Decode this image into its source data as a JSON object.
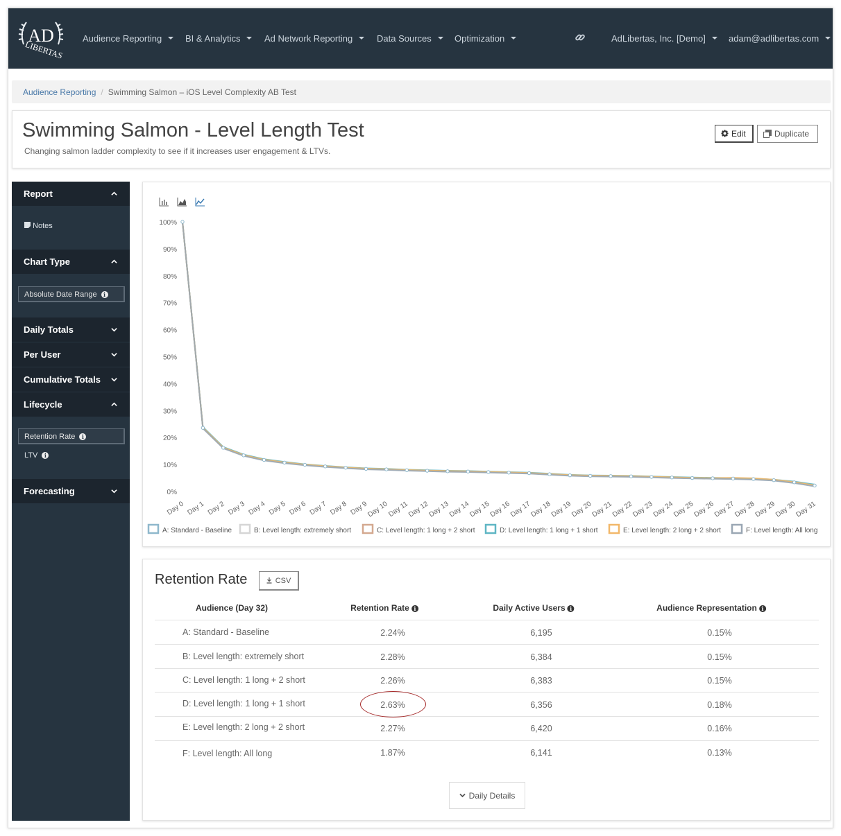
{
  "nav": {
    "logo_top": "AD",
    "logo_bottom": "LIBERTAS",
    "items": [
      {
        "label": "Audience Reporting"
      },
      {
        "label": "BI & Analytics"
      },
      {
        "label": "Ad Network Reporting"
      },
      {
        "label": "Data Sources"
      },
      {
        "label": "Optimization"
      }
    ],
    "org": "AdLibertas, Inc. [Demo]",
    "user": "adam@adlibertas.com"
  },
  "breadcrumb": {
    "root": "Audience Reporting",
    "separator": "/",
    "current": "Swimming Salmon – iOS Level Complexity AB Test"
  },
  "header": {
    "title": "Swimming Salmon - Level Length Test",
    "subtitle": "Changing salmon ladder complexity to see if it increases user engagement & LTVs.",
    "edit_label": "Edit",
    "duplicate_label": "Duplicate"
  },
  "sidebar": {
    "report_label": "Report",
    "notes_label": "Notes",
    "chart_type_label": "Chart Type",
    "absolute_date_range_label": "Absolute Date Range",
    "daily_totals_label": "Daily Totals",
    "per_user_label": "Per User",
    "cumulative_totals_label": "Cumulative Totals",
    "lifecycle_label": "Lifecycle",
    "retention_rate_label": "Retention Rate",
    "ltv_label": "LTV",
    "forecasting_label": "Forecasting"
  },
  "chart_data": {
    "type": "line",
    "title": "",
    "xlabel": "",
    "ylabel": "",
    "ylim": [
      0,
      100
    ],
    "y_ticks": [
      "0%",
      "10%",
      "20%",
      "30%",
      "40%",
      "50%",
      "60%",
      "70%",
      "80%",
      "90%",
      "100%"
    ],
    "categories": [
      "Day 0",
      "Day 1",
      "Day 2",
      "Day 3",
      "Day 4",
      "Day 5",
      "Day 6",
      "Day 7",
      "Day 8",
      "Day 9",
      "Day 10",
      "Day 11",
      "Day 12",
      "Day 13",
      "Day 14",
      "Day 15",
      "Day 16",
      "Day 17",
      "Day 18",
      "Day 19",
      "Day 20",
      "Day 21",
      "Day 22",
      "Day 23",
      "Day 24",
      "Day 25",
      "Day 26",
      "Day 27",
      "Day 28",
      "Day 29",
      "Day 30",
      "Day 31"
    ],
    "legend_position": "bottom",
    "grid": false,
    "series": [
      {
        "name": "A: Standard - Baseline",
        "color": "#8fb8cc",
        "values": [
          100,
          23.6,
          16.2,
          13.4,
          11.7,
          10.7,
          9.9,
          9.3,
          8.8,
          8.4,
          8.2,
          7.9,
          7.7,
          7.5,
          7.4,
          7.2,
          7.0,
          6.8,
          6.4,
          6.0,
          5.8,
          5.7,
          5.6,
          5.4,
          5.2,
          5.0,
          4.9,
          4.8,
          4.6,
          4.2,
          3.4,
          2.2
        ]
      },
      {
        "name": "B: Level length: extremely short",
        "color": "#d6d6d6",
        "values": [
          100,
          23.8,
          16.4,
          13.6,
          11.9,
          10.9,
          10.0,
          9.4,
          8.9,
          8.5,
          8.3,
          8.0,
          7.8,
          7.6,
          7.5,
          7.3,
          7.1,
          6.9,
          6.5,
          6.1,
          5.9,
          5.8,
          5.7,
          5.5,
          5.3,
          5.1,
          5.0,
          4.9,
          4.7,
          4.3,
          3.5,
          2.3
        ]
      },
      {
        "name": "C: Level length: 1 long + 2 short",
        "color": "#d4a990",
        "values": [
          100,
          23.7,
          16.3,
          13.5,
          11.8,
          10.8,
          10.0,
          9.4,
          8.9,
          8.5,
          8.2,
          8.0,
          7.8,
          7.6,
          7.4,
          7.2,
          7.0,
          6.9,
          6.5,
          6.1,
          5.9,
          5.8,
          5.6,
          5.5,
          5.3,
          5.1,
          5.0,
          4.9,
          4.7,
          4.3,
          3.5,
          2.3
        ]
      },
      {
        "name": "D: Level length: 1 long + 1 short",
        "color": "#5fb6c4",
        "values": [
          100,
          23.9,
          16.5,
          13.7,
          12.0,
          11.0,
          10.1,
          9.5,
          9.0,
          8.6,
          8.4,
          8.1,
          7.9,
          7.7,
          7.6,
          7.4,
          7.2,
          7.0,
          6.6,
          6.2,
          6.0,
          5.9,
          5.8,
          5.6,
          5.4,
          5.2,
          5.1,
          5.0,
          4.8,
          4.4,
          3.7,
          2.6
        ]
      },
      {
        "name": "E: Level length: 2 long + 2 short",
        "color": "#f2b86a",
        "values": [
          100,
          23.7,
          16.3,
          13.5,
          11.8,
          10.8,
          10.0,
          9.4,
          8.9,
          8.5,
          8.3,
          8.0,
          7.8,
          7.6,
          7.5,
          7.3,
          7.1,
          6.9,
          6.5,
          6.1,
          5.9,
          5.8,
          5.7,
          5.5,
          5.3,
          5.1,
          5.0,
          5.1,
          4.9,
          4.4,
          3.5,
          2.3
        ]
      },
      {
        "name": "F: Level length: All long",
        "color": "#9aa7b4",
        "values": [
          100,
          23.4,
          16.0,
          13.2,
          11.5,
          10.5,
          9.7,
          9.1,
          8.6,
          8.2,
          8.0,
          7.7,
          7.5,
          7.3,
          7.2,
          7.0,
          6.8,
          6.6,
          6.2,
          5.8,
          5.6,
          5.5,
          5.4,
          5.2,
          5.0,
          4.8,
          4.7,
          4.6,
          4.4,
          4.0,
          3.1,
          1.9
        ]
      }
    ]
  },
  "table": {
    "title": "Retention Rate",
    "csv_label": "CSV",
    "headers": {
      "audience": "Audience (Day 32)",
      "retention": "Retention Rate",
      "dau": "Daily Active Users",
      "representation": "Audience Representation"
    },
    "rows": [
      {
        "audience": "A: Standard - Baseline",
        "retention": "2.24%",
        "dau": "6,195",
        "representation": "0.15%"
      },
      {
        "audience": "B: Level length: extremely short",
        "retention": "2.28%",
        "dau": "6,384",
        "representation": "0.15%"
      },
      {
        "audience": "C: Level length: 1 long + 2 short",
        "retention": "2.26%",
        "dau": "6,383",
        "representation": "0.15%"
      },
      {
        "audience": "D: Level length: 1 long + 1 short",
        "retention": "2.63%",
        "dau": "6,356",
        "representation": "0.18%"
      },
      {
        "audience": "E: Level length: 2 long + 2 short",
        "retention": "2.27%",
        "dau": "6,420",
        "representation": "0.16%"
      },
      {
        "audience": "F: Level length: All long",
        "retention": "1.87%",
        "dau": "6,141",
        "representation": "0.13%"
      }
    ],
    "daily_details_label": "Daily Details"
  }
}
